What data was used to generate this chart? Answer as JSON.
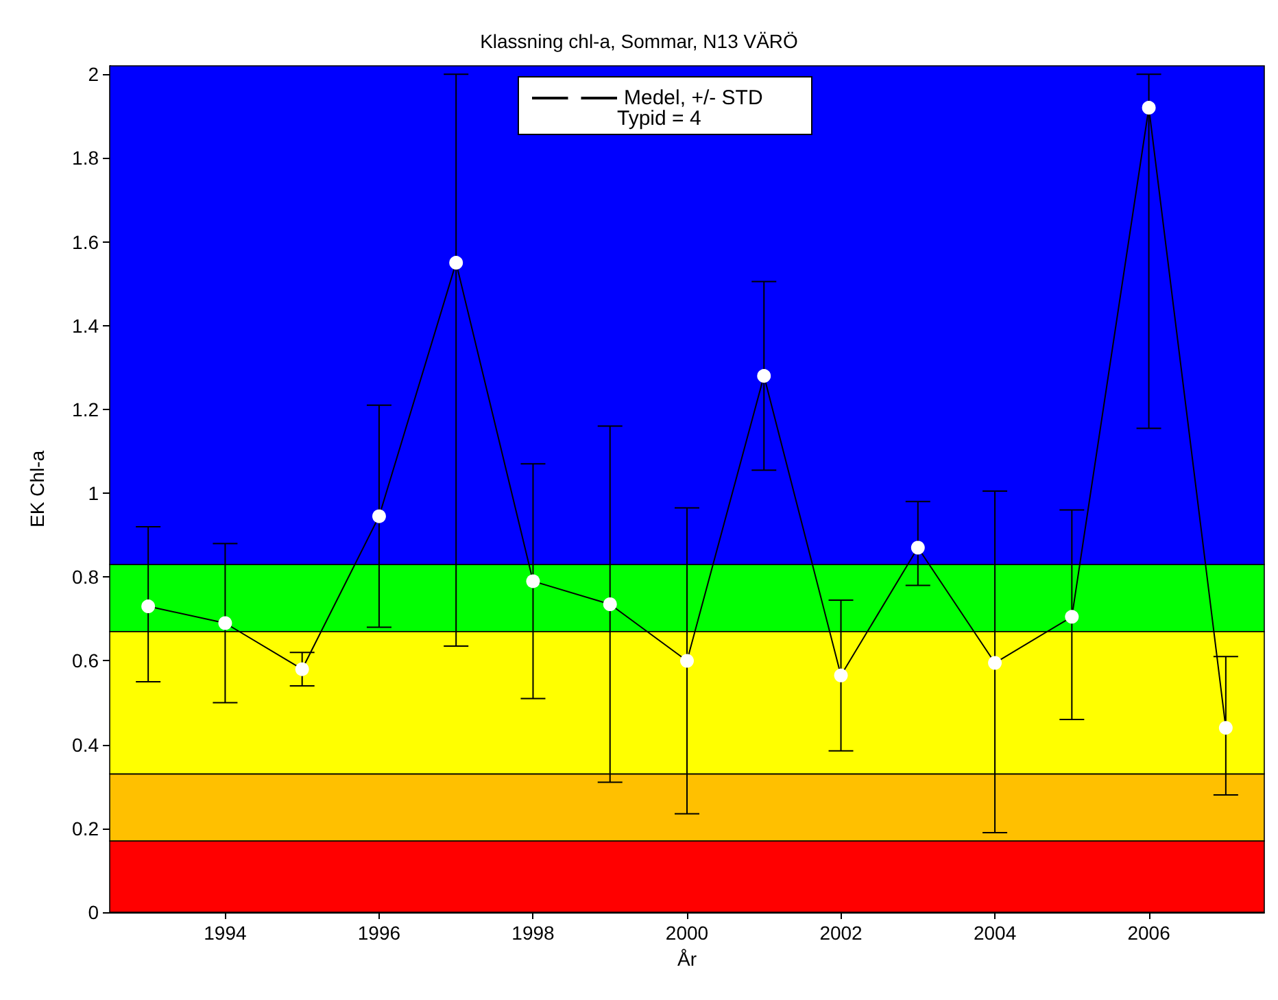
{
  "chart_data": {
    "type": "line",
    "title": "Klassning chl-a, Sommar, N13 VÄRÖ",
    "xlabel": "År",
    "ylabel": "EK Chl-a",
    "x": [
      1993,
      1994,
      1995,
      1996,
      1997,
      1998,
      1999,
      2000,
      2001,
      2002,
      2003,
      2004,
      2005,
      2006,
      2007
    ],
    "series": [
      {
        "name": "Medel, +/- STD",
        "color": "#000000",
        "values": [
          0.73,
          0.69,
          0.58,
          0.945,
          1.55,
          0.79,
          0.735,
          0.6,
          1.28,
          0.565,
          0.87,
          0.595,
          0.705,
          1.92,
          0.44
        ],
        "errors": [
          [
            0.55,
            0.92
          ],
          [
            0.5,
            0.88
          ],
          [
            0.54,
            0.62
          ],
          [
            0.68,
            1.21
          ],
          [
            0.635,
            2.0
          ],
          [
            0.51,
            1.07
          ],
          [
            0.31,
            1.16
          ],
          [
            0.235,
            0.965
          ],
          [
            1.055,
            1.505
          ],
          [
            0.385,
            0.745
          ],
          [
            0.78,
            0.98
          ],
          [
            0.19,
            1.005
          ],
          [
            0.46,
            0.96
          ],
          [
            1.155,
            2.0
          ],
          [
            0.28,
            0.61
          ]
        ]
      }
    ],
    "annotations": [
      "Typid = 4"
    ],
    "xlim": [
      1992.5,
      2007.5
    ],
    "xticks": [
      1994,
      1996,
      1998,
      2000,
      2002,
      2004,
      2006
    ],
    "ylim": [
      0,
      2.02
    ],
    "yticks": [
      0,
      0.2,
      0.4,
      0.6,
      0.8,
      1,
      1.2,
      1.4,
      1.6,
      1.8,
      2
    ],
    "bands": [
      {
        "axis": "y",
        "from": 0,
        "to": 0.17,
        "color": "#ff0000"
      },
      {
        "axis": "y",
        "from": 0.17,
        "to": 0.33,
        "color": "#ffc000"
      },
      {
        "axis": "y",
        "from": 0.33,
        "to": 0.67,
        "color": "#ffff00"
      },
      {
        "axis": "y",
        "from": 0.67,
        "to": 0.83,
        "color": "#00ff00"
      },
      {
        "axis": "y",
        "from": 0.83,
        "to": 2.02,
        "color": "#0000ff"
      }
    ],
    "legend": "top",
    "marker": "circle",
    "line_style": "solid"
  }
}
